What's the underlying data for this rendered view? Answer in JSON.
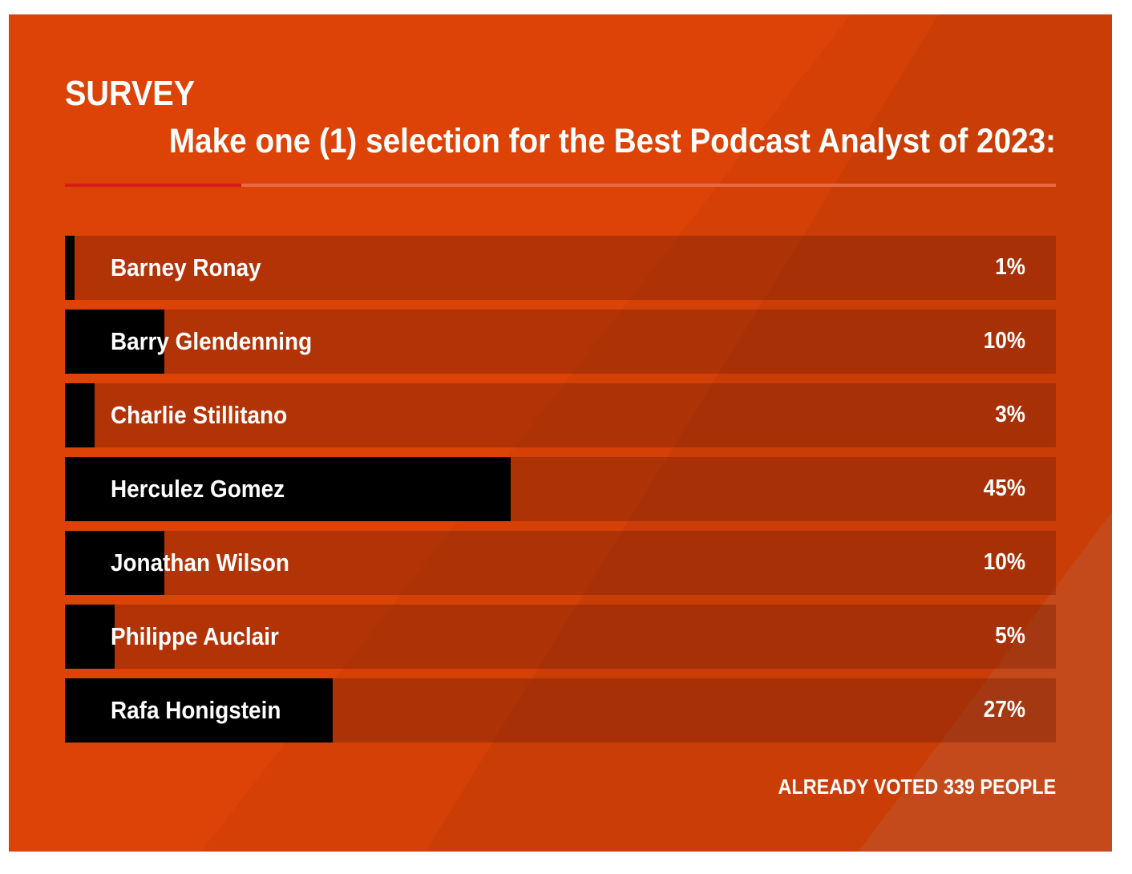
{
  "survey": {
    "label": "SURVEY",
    "question": "Make one (1) selection for the Best Podcast Analyst of 2023:",
    "options": [
      {
        "name": "Barney Ronay",
        "percent": 1,
        "percent_label": "1%"
      },
      {
        "name": "Barry Glendenning",
        "percent": 10,
        "percent_label": "10%"
      },
      {
        "name": "Charlie Stillitano",
        "percent": 3,
        "percent_label": "3%"
      },
      {
        "name": "Herculez Gomez",
        "percent": 45,
        "percent_label": "45%"
      },
      {
        "name": "Jonathan Wilson",
        "percent": 10,
        "percent_label": "10%"
      },
      {
        "name": "Philippe Auclair",
        "percent": 5,
        "percent_label": "5%"
      },
      {
        "name": "Rafa Honigstein",
        "percent": 27,
        "percent_label": "27%"
      }
    ],
    "voted_text": "ALREADY VOTED 339 PEOPLE"
  },
  "colors": {
    "background": "#dd4306",
    "fill": "#000000",
    "accent": "#d41d16",
    "text": "#ffffff"
  }
}
